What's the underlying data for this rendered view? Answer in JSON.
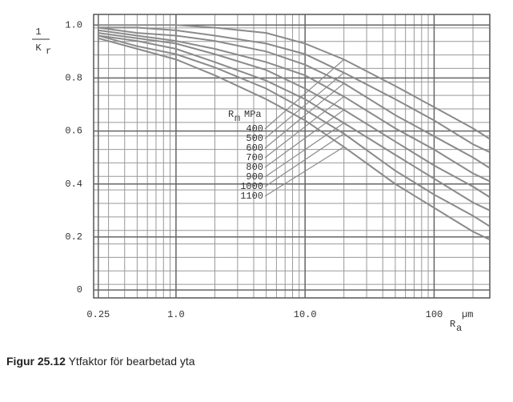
{
  "chart_data": {
    "type": "line",
    "ylabel": {
      "numerator": "1",
      "denominator": "K",
      "subscript": "r"
    },
    "xlabel": {
      "main": "R",
      "subscript": "a"
    },
    "x_unit": "µm",
    "legend_title": {
      "main": "R",
      "subscript": "m",
      "unit": "MPa"
    },
    "log_x": true,
    "grid": true,
    "x": [
      0.25,
      0.5,
      1,
      2,
      5,
      10,
      20,
      50,
      100,
      200,
      270
    ],
    "series": [
      {
        "name": "400",
        "color": "#8a8a8a",
        "values": [
          1.0,
          1.0,
          1.0,
          0.99,
          0.97,
          0.93,
          0.87,
          0.77,
          0.69,
          0.61,
          0.57
        ]
      },
      {
        "name": "500",
        "color": "#8a8a8a",
        "values": [
          0.99,
          0.99,
          0.98,
          0.96,
          0.93,
          0.89,
          0.82,
          0.72,
          0.64,
          0.55,
          0.52
        ]
      },
      {
        "name": "600",
        "color": "#8a8a8a",
        "values": [
          0.99,
          0.97,
          0.96,
          0.94,
          0.9,
          0.85,
          0.78,
          0.66,
          0.58,
          0.5,
          0.46
        ]
      },
      {
        "name": "700",
        "color": "#8a8a8a",
        "values": [
          0.98,
          0.96,
          0.94,
          0.91,
          0.86,
          0.81,
          0.73,
          0.61,
          0.53,
          0.44,
          0.41
        ]
      },
      {
        "name": "800",
        "color": "#8a8a8a",
        "values": [
          0.97,
          0.95,
          0.93,
          0.89,
          0.83,
          0.76,
          0.68,
          0.56,
          0.47,
          0.39,
          0.35
        ]
      },
      {
        "name": "900",
        "color": "#8a8a8a",
        "values": [
          0.96,
          0.94,
          0.91,
          0.86,
          0.79,
          0.72,
          0.63,
          0.51,
          0.42,
          0.33,
          0.3
        ]
      },
      {
        "name": "1000",
        "color": "#8a8a8a",
        "values": [
          0.96,
          0.92,
          0.89,
          0.84,
          0.76,
          0.68,
          0.59,
          0.45,
          0.36,
          0.28,
          0.24
        ]
      },
      {
        "name": "1100",
        "color": "#8a8a8a",
        "values": [
          0.95,
          0.91,
          0.87,
          0.81,
          0.72,
          0.64,
          0.54,
          0.4,
          0.31,
          0.22,
          0.19
        ]
      }
    ],
    "xlim": [
      0.23,
      270
    ],
    "xticks": [
      0.25,
      {
        "value": 1,
        "label": "1.0"
      },
      {
        "value": 10,
        "label": "10.0"
      },
      100
    ],
    "ylim": [
      -0.03,
      1.04
    ],
    "yticks": [
      0,
      0.2,
      0.4,
      0.6,
      0.8,
      {
        "value": 1,
        "label": "1.0"
      }
    ]
  },
  "caption": {
    "label": "Figur 25.12",
    "text": "Ytfaktor för bearbetad yta"
  }
}
